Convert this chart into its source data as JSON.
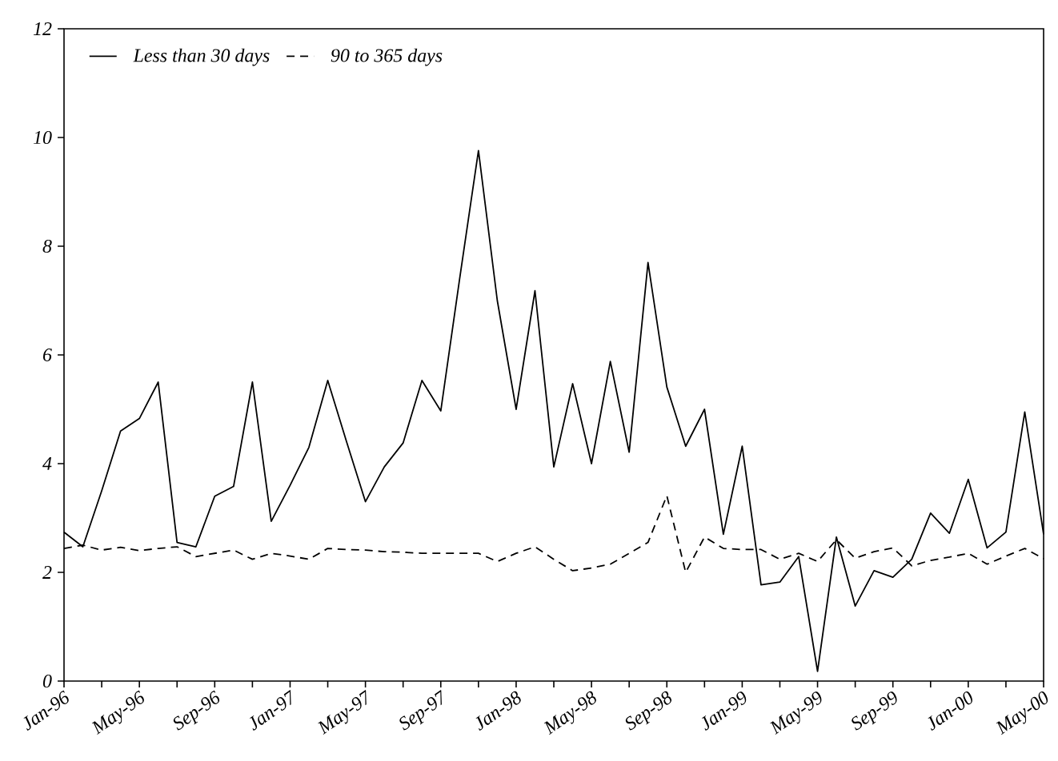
{
  "chart_data": {
    "type": "line",
    "legend": "top left",
    "xlim": [
      "1996-01",
      "2000-05"
    ],
    "ylim": [
      0,
      12
    ],
    "yticks": [
      0,
      2,
      4,
      6,
      8,
      10,
      12
    ],
    "xticks": [
      {
        "value": "1996-01",
        "label": "Jan-96"
      },
      {
        "value": "1996-03",
        "label": null
      },
      {
        "value": "1996-05",
        "label": "May-96"
      },
      {
        "value": "1996-07",
        "label": null
      },
      {
        "value": "1996-09",
        "label": "Sep-96"
      },
      {
        "value": "1996-11",
        "label": null
      },
      {
        "value": "1997-01",
        "label": "Jan-97"
      },
      {
        "value": "1997-03",
        "label": null
      },
      {
        "value": "1997-05",
        "label": "May-97"
      },
      {
        "value": "1997-07",
        "label": null
      },
      {
        "value": "1997-09",
        "label": "Sep-97"
      },
      {
        "value": "1997-11",
        "label": null
      },
      {
        "value": "1998-01",
        "label": "Jan-98"
      },
      {
        "value": "1998-03",
        "label": null
      },
      {
        "value": "1998-05",
        "label": "May-98"
      },
      {
        "value": "1998-07",
        "label": null
      },
      {
        "value": "1998-09",
        "label": "Sep-98"
      },
      {
        "value": "1998-11",
        "label": null
      },
      {
        "value": "1999-01",
        "label": "Jan-99"
      },
      {
        "value": "1999-03",
        "label": null
      },
      {
        "value": "1999-05",
        "label": "May-99"
      },
      {
        "value": "1999-07",
        "label": null
      },
      {
        "value": "1999-09",
        "label": "Sep-99"
      },
      {
        "value": "1999-11",
        "label": null
      },
      {
        "value": "2000-01",
        "label": "Jan-00"
      },
      {
        "value": "2000-03",
        "label": null
      },
      {
        "value": "2000-05",
        "label": "May-00"
      }
    ],
    "x": [
      "1996-01",
      "1996-02",
      "1996-03",
      "1996-04",
      "1996-05",
      "1996-06",
      "1996-07",
      "1996-08",
      "1996-09",
      "1996-10",
      "1996-11",
      "1996-12",
      "1997-01",
      "1997-02",
      "1997-03",
      "1997-04",
      "1997-05",
      "1997-06",
      "1997-07",
      "1997-08",
      "1997-09",
      "1997-10",
      "1997-11",
      "1997-12",
      "1998-01",
      "1998-02",
      "1998-03",
      "1998-04",
      "1998-05",
      "1998-06",
      "1998-07",
      "1998-08",
      "1998-09",
      "1998-10",
      "1998-11",
      "1998-12",
      "1999-01",
      "1999-02",
      "1999-03",
      "1999-04",
      "1999-05",
      "1999-06",
      "1999-07",
      "1999-08",
      "1999-09",
      "1999-10",
      "1999-11",
      "1999-12",
      "2000-01",
      "2000-02",
      "2000-03",
      "2000-04",
      "2000-05"
    ],
    "series": [
      {
        "name": "Less than 30 days",
        "color": "#000000",
        "line_style": "solid",
        "values": [
          2.74,
          2.47,
          3.5,
          4.6,
          4.83,
          5.5,
          2.55,
          2.47,
          3.4,
          3.58,
          5.5,
          2.94,
          3.6,
          4.3,
          5.53,
          4.4,
          3.3,
          3.94,
          4.38,
          5.53,
          4.97,
          7.4,
          9.76,
          7.0,
          5.0,
          7.18,
          3.94,
          5.47,
          4.0,
          5.88,
          4.21,
          7.7,
          5.41,
          4.32,
          5.0,
          2.7,
          4.32,
          1.77,
          1.82,
          2.29,
          0.18,
          2.65,
          1.38,
          2.03,
          1.91,
          2.24,
          3.09,
          2.72,
          3.71,
          2.45,
          2.74,
          4.95,
          2.7
        ]
      },
      {
        "name": "90 to 365 days",
        "color": "#000000",
        "line_style": "dashed",
        "values": [
          2.44,
          2.5,
          2.41,
          2.46,
          2.4,
          2.44,
          2.47,
          2.29,
          2.35,
          2.41,
          2.24,
          2.35,
          2.3,
          2.24,
          2.44,
          2.42,
          2.41,
          2.38,
          2.37,
          2.35,
          2.35,
          2.35,
          2.35,
          2.2,
          2.35,
          2.47,
          2.24,
          2.03,
          2.08,
          2.15,
          2.35,
          2.55,
          3.41,
          2.0,
          2.65,
          2.44,
          2.42,
          2.42,
          2.24,
          2.35,
          2.2,
          2.6,
          2.26,
          2.38,
          2.45,
          2.12,
          2.22,
          2.28,
          2.35,
          2.15,
          2.3,
          2.44,
          2.25
        ]
      }
    ]
  }
}
